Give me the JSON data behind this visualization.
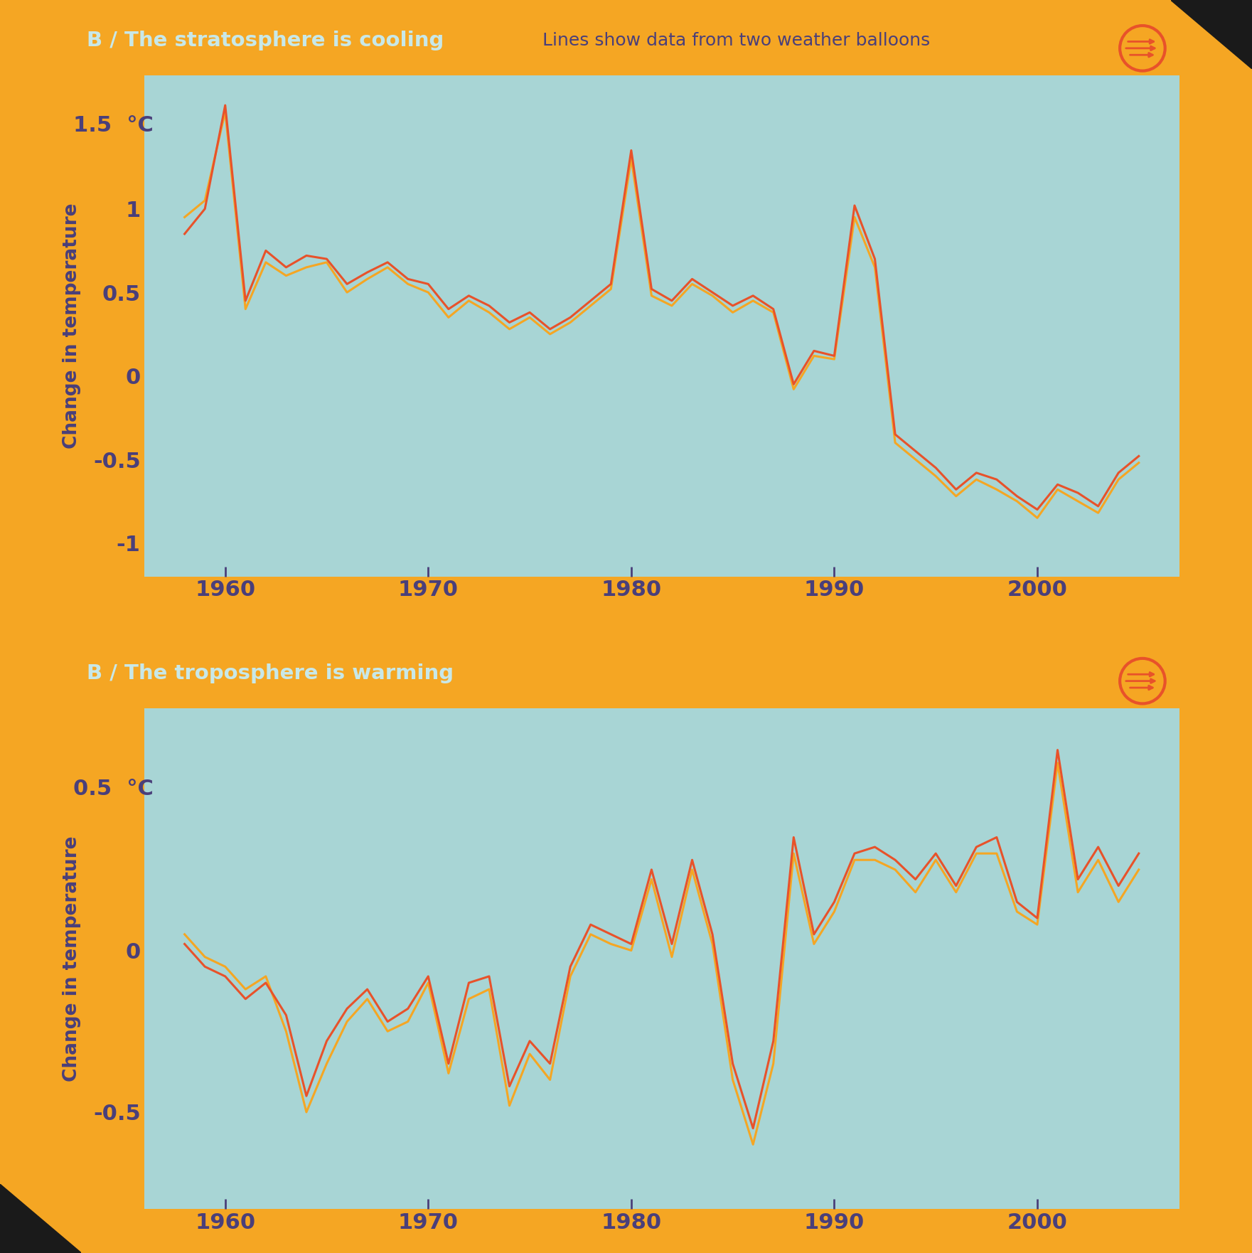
{
  "background_color": "#F5A623",
  "panel_bg": "#A8D5D5",
  "title1": "B / The stratosphere is cooling",
  "title2": "B / The troposphere is warming",
  "title_bg": "#E8522A",
  "title_text_color": "#C8E8E8",
  "subtitle": "Lines show data from two weather balloons",
  "subtitle_color": "#4A3F7A",
  "ylabel": "Change in temperature",
  "ylabel_color": "#4A3F7A",
  "tick_color": "#4A3F7A",
  "line1_color": "#E8522A",
  "line2_color": "#F5A623",
  "icon_color": "#E8522A",
  "years": [
    1958,
    1959,
    1960,
    1961,
    1962,
    1963,
    1964,
    1965,
    1966,
    1967,
    1968,
    1969,
    1970,
    1971,
    1972,
    1973,
    1974,
    1975,
    1976,
    1977,
    1978,
    1979,
    1980,
    1981,
    1982,
    1983,
    1984,
    1985,
    1986,
    1987,
    1988,
    1989,
    1990,
    1991,
    1992,
    1993,
    1994,
    1995,
    1996,
    1997,
    1998,
    1999,
    2000,
    2001,
    2002,
    2003,
    2004,
    2005
  ],
  "strat_line1": [
    0.85,
    1.0,
    1.62,
    0.45,
    0.75,
    0.65,
    0.72,
    0.7,
    0.55,
    0.62,
    0.68,
    0.58,
    0.55,
    0.4,
    0.48,
    0.42,
    0.32,
    0.38,
    0.28,
    0.35,
    0.45,
    0.55,
    1.35,
    0.52,
    0.45,
    0.58,
    0.5,
    0.42,
    0.48,
    0.4,
    -0.05,
    0.15,
    0.12,
    1.02,
    0.7,
    -0.35,
    -0.45,
    -0.55,
    -0.68,
    -0.58,
    -0.62,
    -0.72,
    -0.8,
    -0.65,
    -0.7,
    -0.78,
    -0.58,
    -0.48
  ],
  "strat_line2": [
    0.95,
    1.05,
    1.58,
    0.4,
    0.68,
    0.6,
    0.65,
    0.68,
    0.5,
    0.58,
    0.65,
    0.55,
    0.5,
    0.35,
    0.45,
    0.38,
    0.28,
    0.35,
    0.25,
    0.32,
    0.42,
    0.52,
    1.3,
    0.48,
    0.42,
    0.55,
    0.48,
    0.38,
    0.45,
    0.38,
    -0.08,
    0.12,
    0.1,
    0.95,
    0.65,
    -0.4,
    -0.5,
    -0.6,
    -0.72,
    -0.62,
    -0.68,
    -0.75,
    -0.85,
    -0.68,
    -0.75,
    -0.82,
    -0.62,
    -0.52
  ],
  "trop_line1": [
    0.02,
    -0.05,
    -0.08,
    -0.15,
    -0.1,
    -0.2,
    -0.45,
    -0.28,
    -0.18,
    -0.12,
    -0.22,
    -0.18,
    -0.08,
    -0.35,
    -0.1,
    -0.08,
    -0.42,
    -0.28,
    -0.35,
    -0.05,
    0.08,
    0.05,
    0.02,
    0.25,
    0.02,
    0.28,
    0.05,
    -0.35,
    -0.55,
    -0.28,
    0.35,
    0.05,
    0.15,
    0.3,
    0.32,
    0.28,
    0.22,
    0.3,
    0.2,
    0.32,
    0.35,
    0.15,
    0.1,
    0.62,
    0.22,
    0.32,
    0.2,
    0.3
  ],
  "trop_line2": [
    0.05,
    -0.02,
    -0.05,
    -0.12,
    -0.08,
    -0.25,
    -0.5,
    -0.35,
    -0.22,
    -0.15,
    -0.25,
    -0.22,
    -0.1,
    -0.38,
    -0.15,
    -0.12,
    -0.48,
    -0.32,
    -0.4,
    -0.08,
    0.05,
    0.02,
    0.0,
    0.22,
    -0.02,
    0.25,
    0.02,
    -0.4,
    -0.6,
    -0.35,
    0.3,
    0.02,
    0.12,
    0.28,
    0.28,
    0.25,
    0.18,
    0.28,
    0.18,
    0.3,
    0.3,
    0.12,
    0.08,
    0.58,
    0.18,
    0.28,
    0.15,
    0.25
  ],
  "strat_yticks": [
    -1.0,
    -0.5,
    0.0,
    0.5,
    1.0
  ],
  "trop_yticks": [
    -0.5,
    0.0
  ],
  "xticks": [
    1960,
    1970,
    1980,
    1990,
    2000
  ],
  "xlim": [
    1956,
    2007
  ],
  "strat_ylim": [
    -1.2,
    1.8
  ],
  "trop_ylim": [
    -0.8,
    0.75
  ]
}
